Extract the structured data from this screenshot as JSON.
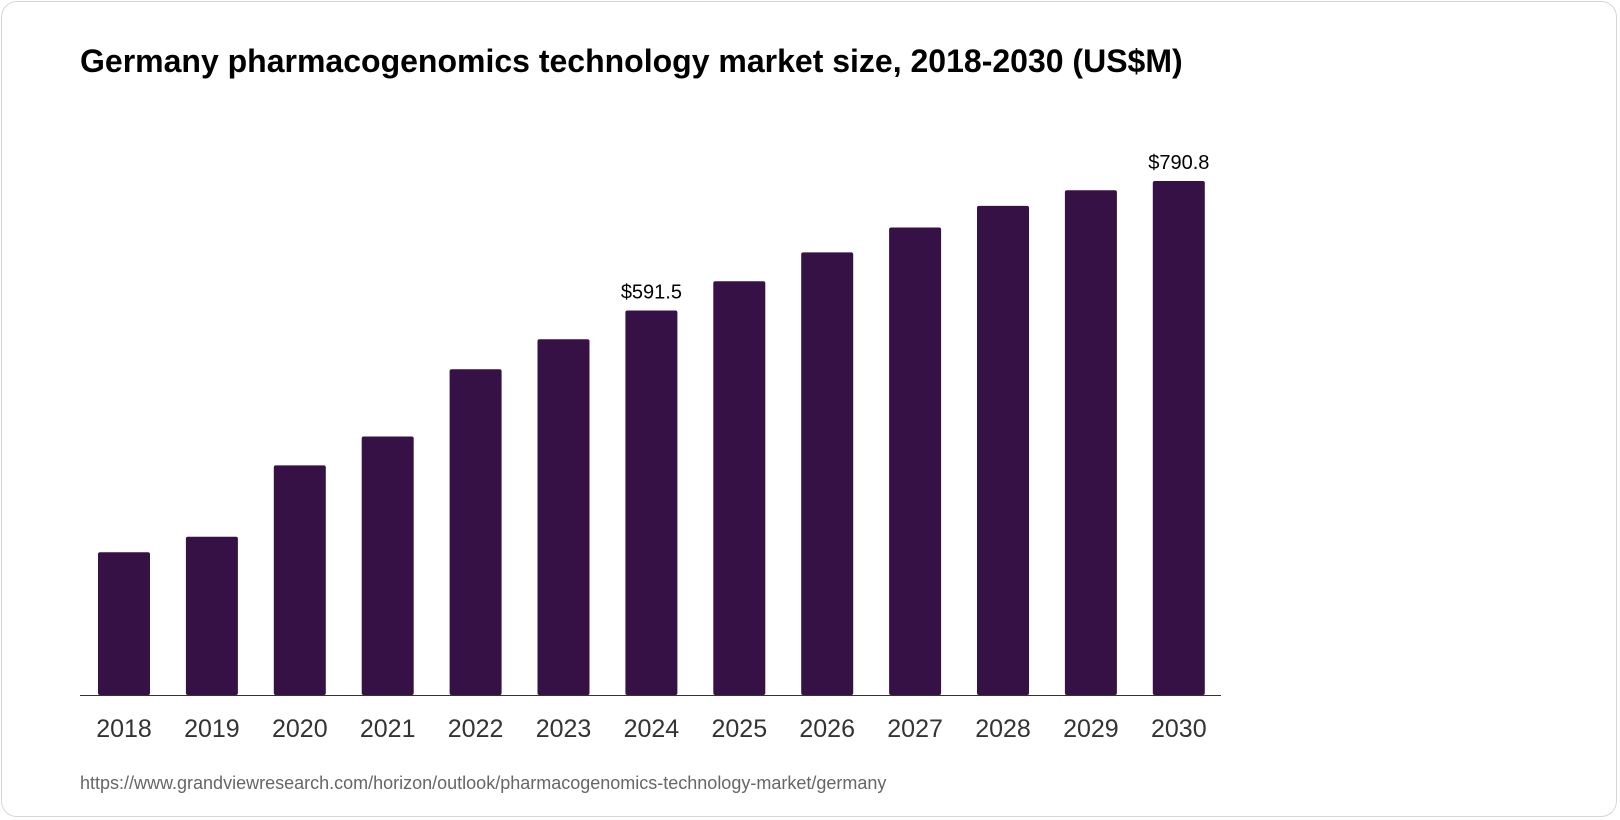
{
  "chart_data": {
    "type": "bar",
    "title": "Germany pharmacogenomics technology market size, 2018-2030 (US$M)",
    "categories": [
      "2018",
      "2019",
      "2020",
      "2021",
      "2022",
      "2023",
      "2024",
      "2025",
      "2026",
      "2027",
      "2028",
      "2029",
      "2030"
    ],
    "values": [
      219.6,
      243.4,
      353.2,
      397.8,
      501.2,
      547.3,
      591.5,
      636.5,
      681.0,
      719.2,
      752.6,
      776.5,
      790.8
    ],
    "data_labels": {
      "2024": "$591.5",
      "2030": "$790.8"
    },
    "xlabel": "",
    "ylabel": "",
    "ylim": [
      0,
      790.8
    ],
    "grid": false,
    "bar_color": "#361146"
  },
  "source": "https://www.grandviewresearch.com/horizon/outlook/pharmacogenomics-technology-market/germany"
}
